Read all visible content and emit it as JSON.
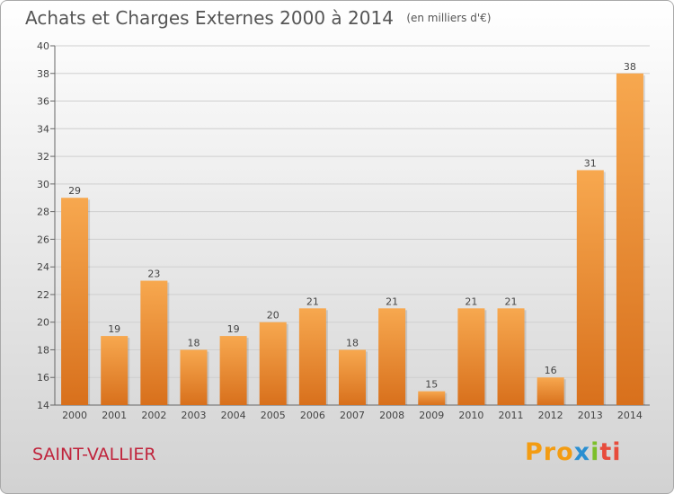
{
  "header": {
    "title": "Achats et Charges Externes 2000 à 2014",
    "subtitle": "(en milliers d'€)"
  },
  "footer": {
    "city": "SAINT-VALLIER",
    "logo_letters": [
      "Pro",
      "x",
      "i",
      "ti"
    ]
  },
  "colors": {
    "bar_light": "#f7a84f",
    "bar_dark": "#d8701c",
    "grid": "#cfcfcf",
    "city": "#c0243c"
  },
  "chart_data": {
    "type": "bar",
    "title": "Achats et Charges Externes 2000 à 2014",
    "subtitle": "(en milliers d'€)",
    "categories": [
      "2000",
      "2001",
      "2002",
      "2003",
      "2004",
      "2005",
      "2006",
      "2007",
      "2008",
      "2009",
      "2010",
      "2011",
      "2012",
      "2013",
      "2014"
    ],
    "values": [
      29,
      19,
      23,
      18,
      19,
      20,
      21,
      18,
      21,
      15,
      21,
      21,
      16,
      31,
      38
    ],
    "ylim": [
      14,
      40
    ],
    "yticks": [
      14,
      16,
      18,
      20,
      22,
      24,
      26,
      28,
      30,
      32,
      34,
      36,
      38,
      40
    ],
    "grid": true
  }
}
